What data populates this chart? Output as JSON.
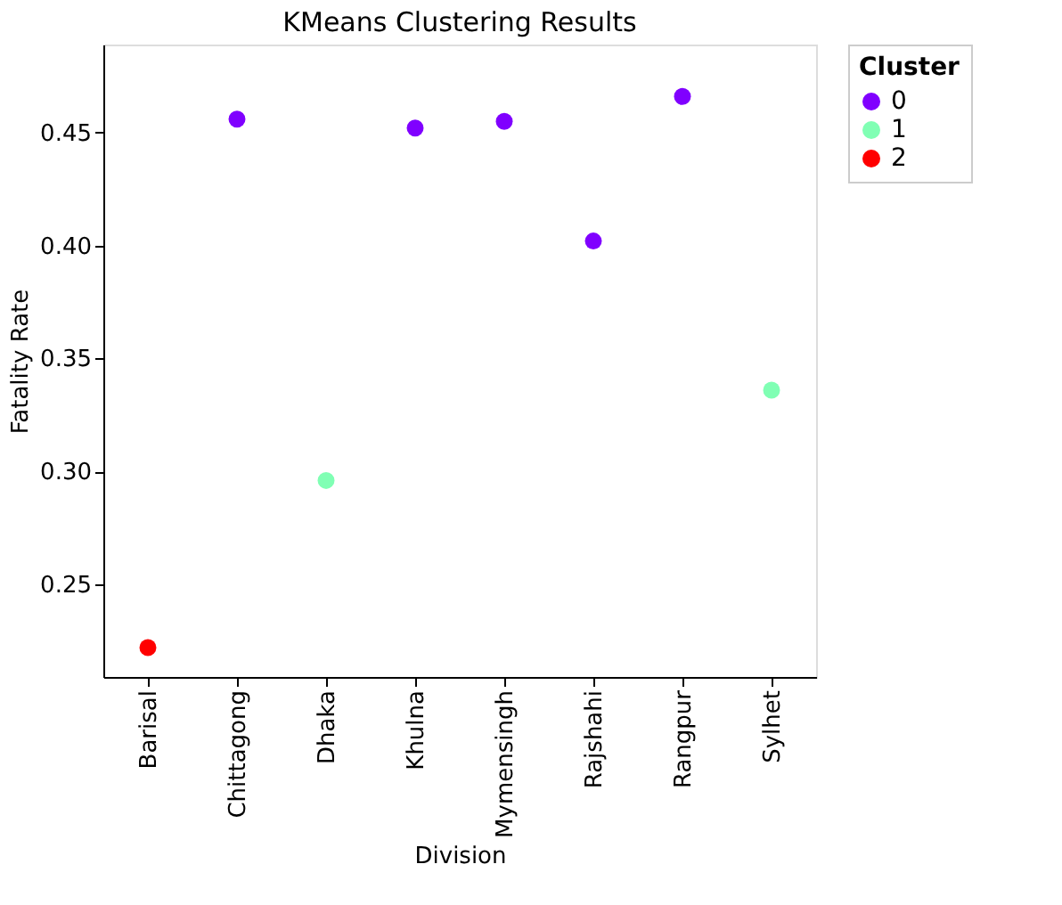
{
  "chart_data": {
    "type": "scatter",
    "title": "KMeans Clustering Results",
    "xlabel": "Division",
    "ylabel": "Fatality Rate",
    "legend_title": "Cluster",
    "categories": [
      "Barisal",
      "Chittagong",
      "Dhaka",
      "Khulna",
      "Mymensingh",
      "Rajshahi",
      "Rangpur",
      "Sylhet"
    ],
    "series": [
      {
        "name": "0",
        "color": "#8000ff",
        "values": [
          null,
          0.456,
          null,
          0.452,
          0.455,
          0.402,
          0.466,
          null
        ]
      },
      {
        "name": "1",
        "color": "#80ffb4",
        "values": [
          null,
          null,
          0.296,
          null,
          null,
          null,
          null,
          0.336
        ]
      },
      {
        "name": "2",
        "color": "#ff0000",
        "values": [
          0.222,
          null,
          null,
          null,
          null,
          null,
          null,
          null
        ]
      }
    ],
    "ylim": [
      0.209,
      0.489
    ],
    "yticks": [
      0.25,
      {
        "value": 0.3,
        "label": "0.30"
      },
      0.35,
      {
        "value": 0.4,
        "label": "0.40"
      },
      0.45
    ],
    "grid": false,
    "legend": "top right",
    "marker": "circle"
  }
}
